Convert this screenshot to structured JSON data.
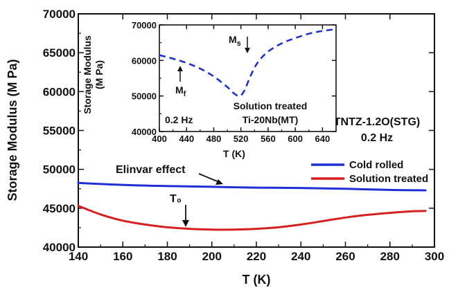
{
  "chart_data": [
    {
      "type": "line",
      "title": "",
      "xlabel": "T (K)",
      "ylabel": "Storage Modulus (M Pa)",
      "xlim": [
        140,
        300
      ],
      "ylim": [
        40000,
        70000
      ],
      "xticks": [
        "140",
        "160",
        "180",
        "200",
        "220",
        "240",
        "260",
        "280",
        "300"
      ],
      "yticks": [
        "40000",
        "45000",
        "50000",
        "55000",
        "60000",
        "65000",
        "70000"
      ],
      "grid": false,
      "legend_position": "right",
      "series": [
        {
          "name": "Cold rolled",
          "color": "#1f2fd6",
          "x": [
            140,
            160,
            180,
            200,
            220,
            240,
            260,
            280,
            296
          ],
          "y": [
            48250,
            48000,
            47850,
            47750,
            47650,
            47600,
            47500,
            47350,
            47300
          ]
        },
        {
          "name": "Solution treated",
          "color": "#d61f1f",
          "x": [
            140,
            150,
            160,
            170,
            180,
            190,
            200,
            210,
            220,
            230,
            240,
            250,
            260,
            270,
            280,
            290,
            296
          ],
          "y": [
            45300,
            44200,
            43400,
            42900,
            42550,
            42350,
            42250,
            42250,
            42350,
            42550,
            42900,
            43350,
            43800,
            44150,
            44400,
            44600,
            44650
          ]
        }
      ],
      "annotations": {
        "elinvar": "Elinvar effect",
        "t0": "T₀",
        "sample": "TNTZ-1.2O(STG)",
        "frequency": "0.2 Hz"
      }
    },
    {
      "type": "line",
      "title": "",
      "xlabel": "T (K)",
      "ylabel": "Storage Modulus\n(M Pa)",
      "ylabel_lines": [
        "Storage Modulus",
        "(M Pa)"
      ],
      "xlim": [
        400,
        660
      ],
      "ylim": [
        40000,
        70000
      ],
      "xticks": [
        "400",
        "440",
        "480",
        "520",
        "560",
        "600",
        "640"
      ],
      "yticks": [
        "40000",
        "50000",
        "60000",
        "70000"
      ],
      "series": [
        {
          "name": "",
          "color": "#1f2fd6",
          "style": "dashed",
          "x": [
            400,
            420,
            440,
            460,
            480,
            500,
            510,
            518,
            525,
            535,
            545,
            560,
            580,
            600,
            620,
            640,
            660
          ],
          "y": [
            61500,
            60500,
            59300,
            57700,
            55500,
            52500,
            50700,
            50000,
            51500,
            56000,
            59500,
            62500,
            64800,
            66300,
            67500,
            68300,
            68800
          ]
        }
      ],
      "annotations": {
        "mf_main": "M",
        "mf_sub": "f",
        "ms_main": "M",
        "ms_sub": "s",
        "frequency": "0.2 Hz",
        "sample_line1": "Solution treated",
        "sample_line2": "Ti-20Nb(MT)"
      }
    }
  ]
}
